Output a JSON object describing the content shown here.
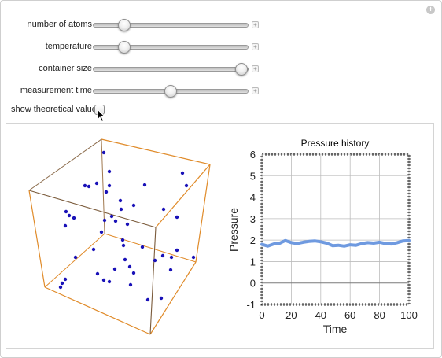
{
  "controls": {
    "sliders": [
      {
        "label": "number of atoms",
        "value": 0.2
      },
      {
        "label": "temperature",
        "value": 0.2
      },
      {
        "label": "container size",
        "value": 0.96
      },
      {
        "label": "measurement time",
        "value": 0.5
      }
    ],
    "checkbox": {
      "label": "show theoretical value",
      "checked": false
    }
  },
  "colors": {
    "atom": "#1a12b8",
    "box_front": "#e08b2a",
    "box_back": "#7a5a3a",
    "series": "#6f9ae0"
  },
  "chart_data": {
    "type": "line",
    "title": "Pressure history",
    "xlabel": "Time",
    "ylabel": "Pressure",
    "xlim": [
      0,
      100
    ],
    "ylim": [
      -1,
      6
    ],
    "xticks": [
      "0",
      "20",
      "40",
      "60",
      "80",
      "100"
    ],
    "yticks": [
      "-1",
      "0",
      "1",
      "2",
      "3",
      "4",
      "5",
      "6"
    ],
    "grid": true,
    "series": [
      {
        "x": [
          0,
          4,
          8,
          12,
          16,
          20,
          24,
          28,
          32,
          36,
          40,
          44,
          48,
          52,
          56,
          60,
          64,
          68,
          72,
          76,
          80,
          84,
          88,
          92,
          96,
          100
        ],
        "values": [
          1.8,
          1.72,
          1.82,
          1.85,
          1.98,
          1.88,
          1.84,
          1.9,
          1.94,
          1.96,
          1.92,
          1.86,
          1.74,
          1.76,
          1.72,
          1.78,
          1.76,
          1.84,
          1.88,
          1.86,
          1.9,
          1.84,
          1.82,
          1.88,
          1.96,
          1.98
        ]
      }
    ]
  }
}
